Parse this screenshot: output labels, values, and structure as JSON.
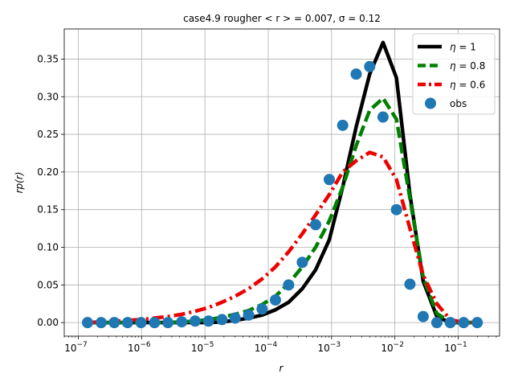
{
  "chart_data": {
    "type": "line",
    "title": "case4.9 rougher  < r > = 0.007, σ = 0.12",
    "xlabel": "r",
    "ylabel": "rp(r)",
    "xscale": "log",
    "xlim": [
      6e-08,
      0.45
    ],
    "ylim": [
      -0.018,
      0.39
    ],
    "xticks": [
      1e-07,
      1e-06,
      1e-05,
      0.0001,
      0.001,
      0.01,
      0.1
    ],
    "xtick_labels": [
      {
        "base": "10",
        "exp": "−7"
      },
      {
        "base": "10",
        "exp": "−6"
      },
      {
        "base": "10",
        "exp": "−5"
      },
      {
        "base": "10",
        "exp": "−4"
      },
      {
        "base": "10",
        "exp": "−3"
      },
      {
        "base": "10",
        "exp": "−2"
      },
      {
        "base": "10",
        "exp": "−1"
      }
    ],
    "yticks": [
      0.0,
      0.05,
      0.1,
      0.15,
      0.2,
      0.25,
      0.3,
      0.35
    ],
    "ytick_labels": [
      "0.00",
      "0.05",
      "0.10",
      "0.15",
      "0.20",
      "0.25",
      "0.30",
      "0.35"
    ],
    "grid": true,
    "legend_position": "top-right",
    "x": [
      1.4e-07,
      2.3e-07,
      3.7e-07,
      6e-07,
      9.8e-07,
      1.6e-06,
      2.6e-06,
      4.3e-06,
      7e-06,
      1.14e-05,
      1.86e-05,
      3e-05,
      4.9e-05,
      8e-05,
      0.00013,
      0.00021,
      0.000345,
      0.00056,
      0.00092,
      0.0015,
      0.00245,
      0.004,
      0.0065,
      0.0106,
      0.0173,
      0.028,
      0.046,
      0.075,
      0.122,
      0.2
    ],
    "series": [
      {
        "name": "η = 1",
        "label_base": "η",
        "label_value": "1",
        "style": "solid",
        "color": "#000000",
        "values": [
          0,
          0,
          0,
          0,
          0,
          0,
          0,
          0,
          0,
          0,
          0.001,
          0.003,
          0.006,
          0.01,
          0.017,
          0.027,
          0.045,
          0.07,
          0.11,
          0.18,
          0.26,
          0.33,
          0.372,
          0.325,
          0.17,
          0.055,
          0.008,
          0,
          0,
          0
        ]
      },
      {
        "name": "η = 0.8",
        "label_base": "η",
        "label_value": "0.8",
        "style": "dashed",
        "color": "#008000",
        "values": [
          0,
          0,
          0,
          0,
          0,
          0,
          0,
          0.001,
          0.002,
          0.004,
          0.007,
          0.011,
          0.016,
          0.024,
          0.035,
          0.052,
          0.074,
          0.1,
          0.135,
          0.18,
          0.235,
          0.282,
          0.298,
          0.27,
          0.165,
          0.06,
          0.012,
          0.001,
          0,
          0
        ]
      },
      {
        "name": "η = 0.6",
        "label_base": "η",
        "label_value": "0.6",
        "style": "dashdot",
        "color": "#ee0000",
        "values": [
          0,
          0.001,
          0.002,
          0.003,
          0.004,
          0.006,
          0.008,
          0.011,
          0.015,
          0.02,
          0.027,
          0.035,
          0.045,
          0.058,
          0.074,
          0.094,
          0.118,
          0.143,
          0.17,
          0.2,
          0.215,
          0.226,
          0.22,
          0.19,
          0.125,
          0.063,
          0.025,
          0.004,
          0,
          0
        ]
      },
      {
        "name": "obs",
        "label_base": "obs",
        "label_value": "",
        "style": "markers",
        "color": "#1f77b4",
        "values": [
          0,
          0,
          0,
          0,
          0,
          0,
          0,
          0.001,
          0.002,
          0.002,
          0.004,
          0.006,
          0.01,
          0.018,
          0.03,
          0.05,
          0.08,
          0.13,
          0.19,
          0.262,
          0.33,
          0.34,
          0.273,
          0.15,
          0.051,
          0.008,
          0,
          0,
          0,
          0
        ]
      }
    ]
  }
}
